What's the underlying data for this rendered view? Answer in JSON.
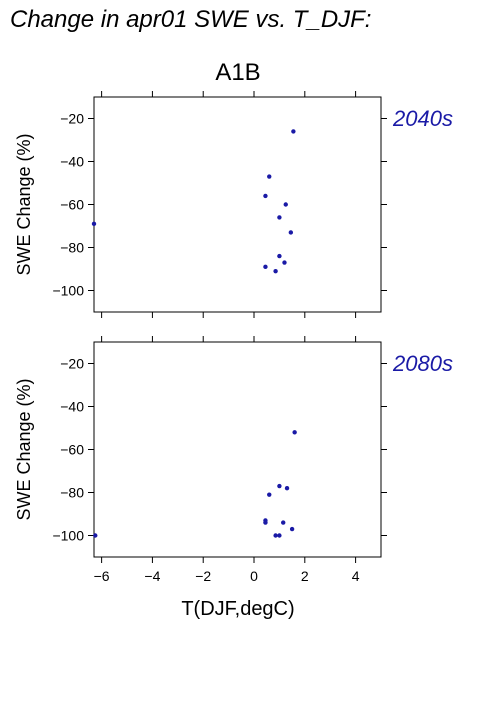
{
  "figure": {
    "title": "Change in apr01 SWE vs. T_DJF:",
    "scenario_label": "A1B"
  },
  "chart_data": [
    {
      "type": "scatter",
      "panel_label": "2040s",
      "ylabel": "SWE Change (%)",
      "xlabel": "",
      "xlim": [
        -6.3,
        5.0
      ],
      "ylim": [
        -110,
        -10
      ],
      "xticks": [
        -6,
        -4,
        -2,
        0,
        2,
        4
      ],
      "yticks": [
        -20,
        -40,
        -60,
        -80,
        -100
      ],
      "show_x_tick_labels": false,
      "grid": false,
      "colors": {
        "points": "#1a1aa6",
        "label": "#1a1aa6"
      },
      "points": [
        {
          "x": 1.55,
          "y": -26
        },
        {
          "x": 0.6,
          "y": -47
        },
        {
          "x": 0.45,
          "y": -56
        },
        {
          "x": 1.25,
          "y": -60
        },
        {
          "x": 1.0,
          "y": -66
        },
        {
          "x": 1.45,
          "y": -73
        },
        {
          "x": -6.3,
          "y": -69
        },
        {
          "x": 1.0,
          "y": -84
        },
        {
          "x": 1.2,
          "y": -87
        },
        {
          "x": 0.45,
          "y": -89
        },
        {
          "x": 0.85,
          "y": -91
        }
      ]
    },
    {
      "type": "scatter",
      "panel_label": "2080s",
      "ylabel": "SWE Change (%)",
      "xlabel": "T(DJF,degC)",
      "xlim": [
        -6.3,
        5.0
      ],
      "ylim": [
        -110,
        -10
      ],
      "xticks": [
        -6,
        -4,
        -2,
        0,
        2,
        4
      ],
      "yticks": [
        -20,
        -40,
        -60,
        -80,
        -100
      ],
      "show_x_tick_labels": true,
      "grid": false,
      "colors": {
        "points": "#1a1aa6",
        "label": "#1a1aa6"
      },
      "points": [
        {
          "x": 1.6,
          "y": -52
        },
        {
          "x": 1.0,
          "y": -77
        },
        {
          "x": 1.3,
          "y": -78
        },
        {
          "x": 0.6,
          "y": -81
        },
        {
          "x": 0.45,
          "y": -93
        },
        {
          "x": 0.45,
          "y": -94
        },
        {
          "x": 1.15,
          "y": -94
        },
        {
          "x": 1.5,
          "y": -97
        },
        {
          "x": 0.85,
          "y": -100
        },
        {
          "x": 1.0,
          "y": -100
        },
        {
          "x": -6.25,
          "y": -100
        }
      ]
    }
  ]
}
